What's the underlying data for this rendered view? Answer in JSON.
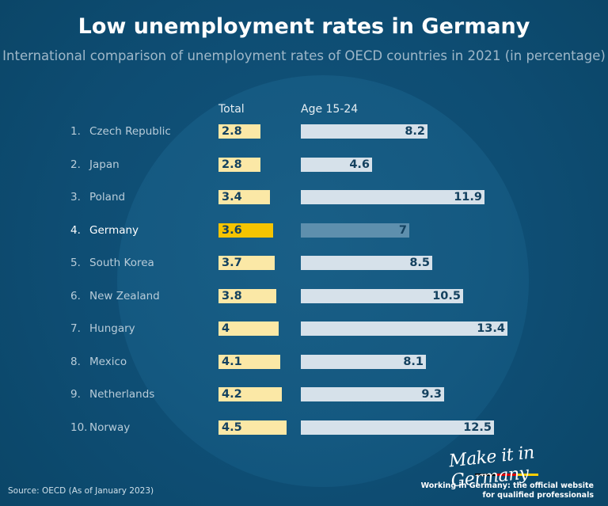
{
  "chart_data": {
    "type": "bar",
    "title": "Low unemployment rates in Germany",
    "subtitle": "International comparison of unemployment rates of OECD countries in 2021 (in percentage)",
    "series_labels": [
      "Total",
      "Age 15-24"
    ],
    "highlight": "Germany",
    "rows": [
      {
        "rank": "1.",
        "country": "Czech Republic",
        "total": 2.8,
        "total_label": "2.8",
        "youth": 8.2,
        "youth_label": "8.2"
      },
      {
        "rank": "2.",
        "country": "Japan",
        "total": 2.8,
        "total_label": "2.8",
        "youth": 4.6,
        "youth_label": "4.6"
      },
      {
        "rank": "3.",
        "country": "Poland",
        "total": 3.4,
        "total_label": "3.4",
        "youth": 11.9,
        "youth_label": "11.9"
      },
      {
        "rank": "4.",
        "country": "Germany",
        "total": 3.6,
        "total_label": "3.6",
        "youth": 7,
        "youth_label": "7"
      },
      {
        "rank": "5.",
        "country": "South Korea",
        "total": 3.7,
        "total_label": "3.7",
        "youth": 8.5,
        "youth_label": "8.5"
      },
      {
        "rank": "6.",
        "country": "New Zealand",
        "total": 3.8,
        "total_label": "3.8",
        "youth": 10.5,
        "youth_label": "10.5"
      },
      {
        "rank": "7.",
        "country": "Hungary",
        "total": 4,
        "total_label": "4",
        "youth": 13.4,
        "youth_label": "13.4"
      },
      {
        "rank": "8.",
        "country": "Mexico",
        "total": 4.1,
        "total_label": "4.1",
        "youth": 8.1,
        "youth_label": "8.1"
      },
      {
        "rank": "9.",
        "country": "Netherlands",
        "total": 4.2,
        "total_label": "4.2",
        "youth": 9.3,
        "youth_label": "9.3"
      },
      {
        "rank": "10.",
        "country": "Norway",
        "total": 4.5,
        "total_label": "4.5",
        "youth": 12.5,
        "youth_label": "12.5"
      }
    ]
  },
  "footer": {
    "source": "Source: OECD (As of January 2023)",
    "brand_logo": "Make it in Germany",
    "brand_tagline_1": "Working in Germany: the official website",
    "brand_tagline_2": "for qualified professionals"
  },
  "colors": {
    "background": "#0c4a6e",
    "total_bar": "#fbe8a6",
    "total_bar_highlight": "#f5c400",
    "youth_bar": "#d6e1ea",
    "youth_bar_highlight": "#5e8fad",
    "label_text": "#14415f"
  }
}
